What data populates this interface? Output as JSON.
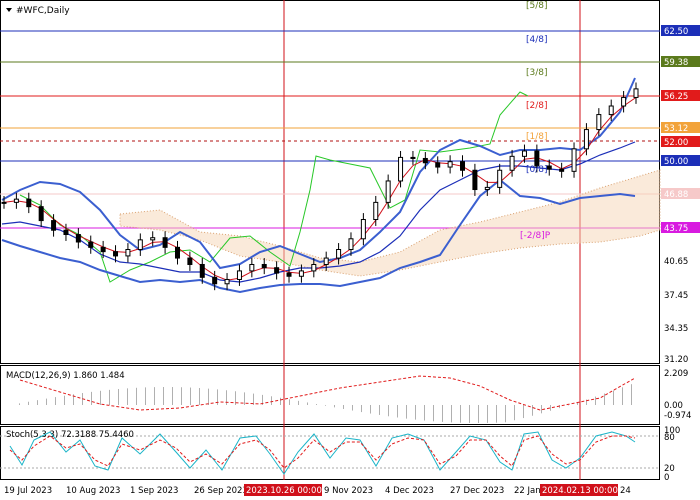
{
  "window": {
    "title": "#WFC,Daily"
  },
  "price_axis": {
    "ticks": [
      "62.50",
      "59.38",
      "56.25",
      "53.12",
      "52.00",
      "50.00",
      "46.88",
      "43.75",
      "40.65",
      "37.45",
      "34.35",
      "31.20"
    ],
    "highlight_labels": [
      {
        "text": "62.50",
        "bg": "#1c2fb8",
        "fg": "#ffffff"
      },
      {
        "text": "59.38",
        "bg": "#5b7a1c",
        "fg": "#ffffff"
      },
      {
        "text": "56.25",
        "bg": "#e11b1b",
        "fg": "#ffffff"
      },
      {
        "text": "53.12",
        "bg": "#f2a33a",
        "fg": "#ffffff"
      },
      {
        "text": "52.00",
        "bg": "#e11b1b",
        "fg": "#ffffff"
      },
      {
        "text": "50.00",
        "bg": "#1c2fb8",
        "fg": "#ffffff"
      },
      {
        "text": "46.88",
        "bg": "#f6c9c9",
        "fg": "#ffffff"
      },
      {
        "text": "43.75",
        "bg": "#d81be0",
        "fg": "#ffffff"
      }
    ]
  },
  "murrey_labels": [
    "[5/8]",
    "[4/8]",
    "[3/8]",
    "[2/8]",
    "[1/8]",
    "[0/8]",
    "[-2/8]P"
  ],
  "macd": {
    "label": "MACD(12,26,9) 1.860 1.484",
    "ticks": [
      "2.209",
      "0.00",
      "-0.974"
    ]
  },
  "stoch": {
    "label": "Stoch(5,3,3) 72.3188 75.4460",
    "ticks": [
      "100",
      "80",
      "20",
      "0"
    ]
  },
  "time_axis": [
    "19 Jul 2023",
    "10 Aug 2023",
    "1 Sep 2023",
    "26 Sep 2023",
    "9 Nov 2023",
    "4 Dec 2023",
    "27 Dec 2023",
    "22 Jan",
    "24"
  ],
  "time_markers": [
    "2023.10.26 00:00",
    "2024.02.13 00:00"
  ],
  "colors": {
    "candle": "#000000",
    "ma_fast": "#d0101a",
    "ma_slow": "#1c2fb8",
    "bollinger": "#3b5fd0",
    "envelope": "#28c828",
    "ichimoku_cloud": "#d9a170",
    "macd_signal": "#e11b1b",
    "macd_hist": "#b0b0b0",
    "stoch_main": "#1ab4c8",
    "stoch_signal": "#e11b1b"
  },
  "chart_data": {
    "type": "candlestick",
    "symbol": "#WFC",
    "timeframe": "Daily",
    "ylim": [
      31.2,
      65.1
    ],
    "series": [
      {
        "name": "WFC",
        "values": [
          46.2,
          46.5,
          45.8,
          44.5,
          43.6,
          43.2,
          42.5,
          42.0,
          41.6,
          41.2,
          41.8,
          42.7,
          42.9,
          42.0,
          41.0,
          40.4,
          39.2,
          38.6,
          39.0,
          39.8,
          40.4,
          40.1,
          39.6,
          39.3,
          39.8,
          40.4,
          41.0,
          41.8,
          42.8,
          44.6,
          46.2,
          48.2,
          50.4,
          50.3,
          49.9,
          49.5,
          50.0,
          49.2,
          47.4,
          47.6,
          49.2,
          50.5,
          51.0,
          49.6,
          49.3,
          49.1,
          51.2,
          53.0,
          54.4,
          55.2,
          56.0,
          56.8
        ]
      }
    ]
  }
}
